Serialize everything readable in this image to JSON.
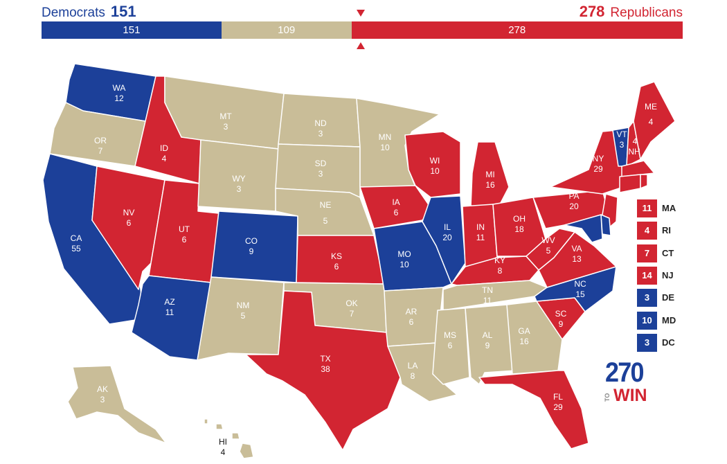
{
  "header": {
    "dem_label": "Democrats",
    "dem_total": "151",
    "rep_total": "278",
    "rep_label": "Republicans"
  },
  "bar": {
    "dem": "151",
    "tossup": "109",
    "rep": "278",
    "dem_value": 151,
    "tossup_value": 109,
    "rep_value": 278
  },
  "colors": {
    "dem": "#1c4099",
    "rep": "#d22532",
    "tossup": "#c9bd98"
  },
  "states": {
    "WA": {
      "abbr": "WA",
      "ev": "12"
    },
    "OR": {
      "abbr": "OR",
      "ev": "7"
    },
    "CA": {
      "abbr": "CA",
      "ev": "55"
    },
    "ID": {
      "abbr": "ID",
      "ev": "4"
    },
    "NV": {
      "abbr": "NV",
      "ev": "6"
    },
    "UT": {
      "abbr": "UT",
      "ev": "6"
    },
    "AZ": {
      "abbr": "AZ",
      "ev": "11"
    },
    "MT": {
      "abbr": "MT",
      "ev": "3"
    },
    "WY": {
      "abbr": "WY",
      "ev": "3"
    },
    "CO": {
      "abbr": "CO",
      "ev": "9"
    },
    "NM": {
      "abbr": "NM",
      "ev": "5"
    },
    "ND": {
      "abbr": "ND",
      "ev": "3"
    },
    "SD": {
      "abbr": "SD",
      "ev": "3"
    },
    "NE": {
      "abbr": "NE",
      "ev": "5"
    },
    "KS": {
      "abbr": "KS",
      "ev": "6"
    },
    "OK": {
      "abbr": "OK",
      "ev": "7"
    },
    "TX": {
      "abbr": "TX",
      "ev": "38"
    },
    "MN": {
      "abbr": "MN",
      "ev": "10"
    },
    "IA": {
      "abbr": "IA",
      "ev": "6"
    },
    "MO": {
      "abbr": "MO",
      "ev": "10"
    },
    "AR": {
      "abbr": "AR",
      "ev": "6"
    },
    "LA": {
      "abbr": "LA",
      "ev": "8"
    },
    "WI": {
      "abbr": "WI",
      "ev": "10"
    },
    "IL": {
      "abbr": "IL",
      "ev": "20"
    },
    "MI": {
      "abbr": "MI",
      "ev": "16"
    },
    "IN": {
      "abbr": "IN",
      "ev": "11"
    },
    "OH": {
      "abbr": "OH",
      "ev": "18"
    },
    "KY": {
      "abbr": "KY",
      "ev": "8"
    },
    "TN": {
      "abbr": "TN",
      "ev": "11"
    },
    "MS": {
      "abbr": "MS",
      "ev": "6"
    },
    "AL": {
      "abbr": "AL",
      "ev": "9"
    },
    "GA": {
      "abbr": "GA",
      "ev": "16"
    },
    "FL": {
      "abbr": "FL",
      "ev": "29"
    },
    "SC": {
      "abbr": "SC",
      "ev": "9"
    },
    "NC": {
      "abbr": "NC",
      "ev": "15"
    },
    "VA": {
      "abbr": "VA",
      "ev": "13"
    },
    "WV": {
      "abbr": "WV",
      "ev": "5"
    },
    "PA": {
      "abbr": "PA",
      "ev": "20"
    },
    "NY": {
      "abbr": "NY",
      "ev": "29"
    },
    "VT": {
      "abbr": "VT",
      "ev": "3"
    },
    "NH": {
      "abbr": "NH",
      "ev": "4"
    },
    "ME": {
      "abbr": "ME",
      "ev": "4"
    },
    "AK": {
      "abbr": "AK",
      "ev": "3"
    },
    "HI": {
      "abbr": "HI",
      "ev": "4"
    }
  },
  "legend": [
    {
      "ev": "11",
      "abbr": "MA",
      "party": "rep"
    },
    {
      "ev": "4",
      "abbr": "RI",
      "party": "rep"
    },
    {
      "ev": "7",
      "abbr": "CT",
      "party": "rep"
    },
    {
      "ev": "14",
      "abbr": "NJ",
      "party": "rep"
    },
    {
      "ev": "3",
      "abbr": "DE",
      "party": "dem"
    },
    {
      "ev": "10",
      "abbr": "MD",
      "party": "dem"
    },
    {
      "ev": "3",
      "abbr": "DC",
      "party": "dem"
    }
  ],
  "logo": {
    "number": "270",
    "to": "TO",
    "win": "WIN"
  }
}
